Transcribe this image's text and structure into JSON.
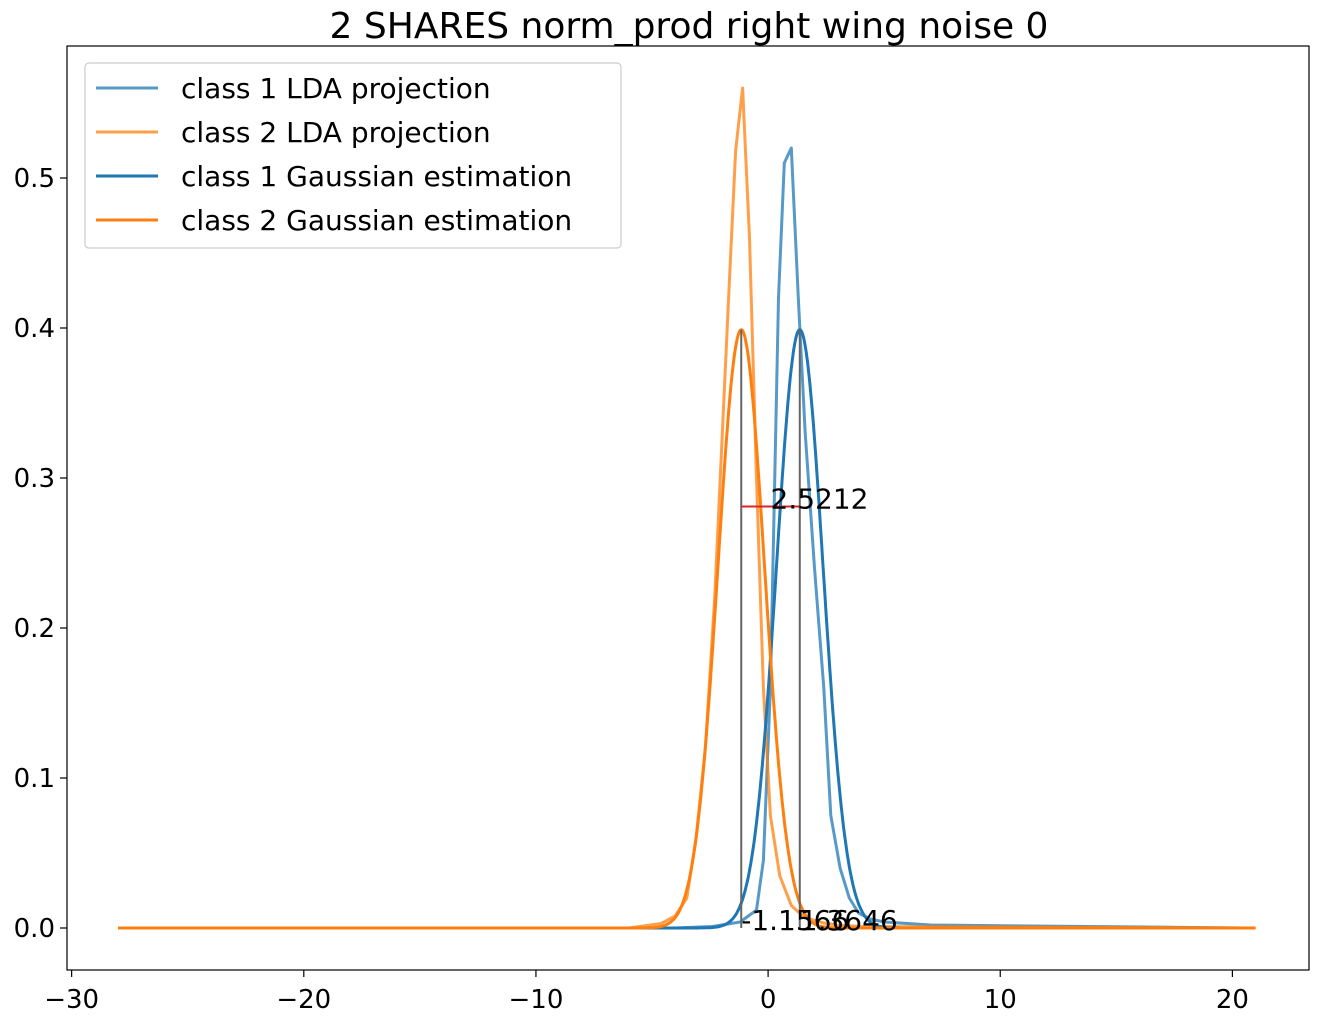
{
  "chart_data": {
    "type": "line",
    "title": "2 SHARES norm_prod right wing noise 0",
    "xlabel": "",
    "ylabel": "",
    "xlim": [
      -30.2,
      23.3
    ],
    "ylim": [
      -0.028,
      0.588
    ],
    "xticks": [
      -30,
      -20,
      -10,
      0,
      10,
      20
    ],
    "xtick_labels": [
      "−30",
      "−20",
      "−10",
      "0",
      "10",
      "20"
    ],
    "yticks": [
      0.0,
      0.1,
      0.2,
      0.3,
      0.4,
      0.5
    ],
    "ytick_labels": [
      "0.0",
      "0.1",
      "0.2",
      "0.3",
      "0.4",
      "0.5"
    ],
    "grid": false,
    "legend_position": "top-left",
    "colors": {
      "blue": "#1f77b4",
      "orange": "#ff7f0e",
      "red": "#d62728",
      "gray": "#666666"
    },
    "series": [
      {
        "name": "class 1 LDA projection",
        "color": "#1f77b4",
        "opacity": 0.75,
        "x": [
          -19,
          -4,
          -2.4,
          -1.2,
          -0.5,
          -0.2,
          0.1,
          0.45,
          0.7,
          1.0,
          1.3,
          1.6,
          2.0,
          2.4,
          2.7,
          3.1,
          3.5,
          3.9,
          4.4,
          5,
          7,
          20.5
        ],
        "y": [
          0,
          0,
          0.001,
          0.004,
          0.012,
          0.045,
          0.16,
          0.42,
          0.51,
          0.52,
          0.42,
          0.33,
          0.24,
          0.16,
          0.075,
          0.04,
          0.02,
          0.01,
          0.006,
          0.004,
          0.002,
          0
        ]
      },
      {
        "name": "class 2 LDA projection",
        "color": "#ff7f0e",
        "opacity": 0.75,
        "x": [
          -28,
          -6,
          -4.6,
          -4.0,
          -3.5,
          -3.1,
          -2.7,
          -2.3,
          -1.7,
          -1.4,
          -1.1,
          -0.8,
          -0.5,
          -0.2,
          0.1,
          0.5,
          1.0,
          1.5,
          2.0,
          2.5,
          3.0,
          4.0,
          21
        ],
        "y": [
          0,
          0,
          0.003,
          0.008,
          0.02,
          0.06,
          0.12,
          0.22,
          0.42,
          0.518,
          0.56,
          0.46,
          0.3,
          0.16,
          0.075,
          0.035,
          0.015,
          0.008,
          0.005,
          0.003,
          0.002,
          0.001,
          0
        ]
      },
      {
        "name": "class 1 Gaussian estimation",
        "color": "#1f77b4",
        "opacity": 1,
        "gaussian": {
          "mu": 1.3646,
          "sigma": 1.0,
          "peak": 0.3989,
          "from": -19,
          "to": 20.5
        }
      },
      {
        "name": "class 2 Gaussian estimation",
        "color": "#ff7f0e",
        "opacity": 1,
        "gaussian": {
          "mu": -1.1566,
          "sigma": 1.0,
          "peak": 0.3989,
          "from": -28,
          "to": 21
        }
      }
    ],
    "annotations": {
      "mean_class1": {
        "x": 1.3646,
        "label": "1.3646"
      },
      "mean_class2": {
        "x": -1.1566,
        "label": "-1.1566"
      },
      "distance": {
        "y": 0.281,
        "label": "2.5212"
      }
    }
  }
}
